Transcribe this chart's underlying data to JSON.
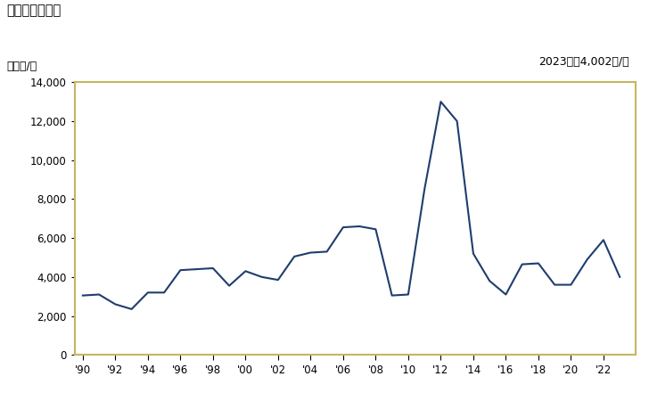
{
  "title": "輸入価格の推移",
  "ylabel": "単位円/枚",
  "annotation": "2023年：4,002円/枚",
  "years": [
    1990,
    1991,
    1992,
    1993,
    1994,
    1995,
    1996,
    1997,
    1998,
    1999,
    2000,
    2001,
    2002,
    2003,
    2004,
    2005,
    2006,
    2007,
    2008,
    2009,
    2010,
    2011,
    2012,
    2013,
    2014,
    2015,
    2016,
    2017,
    2018,
    2019,
    2020,
    2021,
    2022,
    2023
  ],
  "values": [
    3050,
    3100,
    2600,
    2350,
    3200,
    3200,
    4350,
    4400,
    4450,
    3550,
    4300,
    4000,
    3850,
    5050,
    5250,
    5300,
    6550,
    6600,
    6450,
    3050,
    3100,
    8500,
    13000,
    12000,
    5200,
    3800,
    3100,
    4650,
    4700,
    3600,
    3600,
    4900,
    5900,
    4002
  ],
  "line_color": "#1f3d6e",
  "ylim": [
    0,
    14000
  ],
  "yticks": [
    0,
    2000,
    4000,
    6000,
    8000,
    10000,
    12000,
    14000
  ],
  "xtick_years": [
    1990,
    1992,
    1994,
    1996,
    1998,
    2000,
    2002,
    2004,
    2006,
    2008,
    2010,
    2012,
    2014,
    2016,
    2018,
    2020,
    2022
  ],
  "border_color": "#c8b560",
  "background_color": "#ffffff",
  "plot_bg_color": "#ffffff",
  "title_fontsize": 10.5,
  "label_fontsize": 9,
  "tick_fontsize": 8.5,
  "annotation_fontsize": 9
}
